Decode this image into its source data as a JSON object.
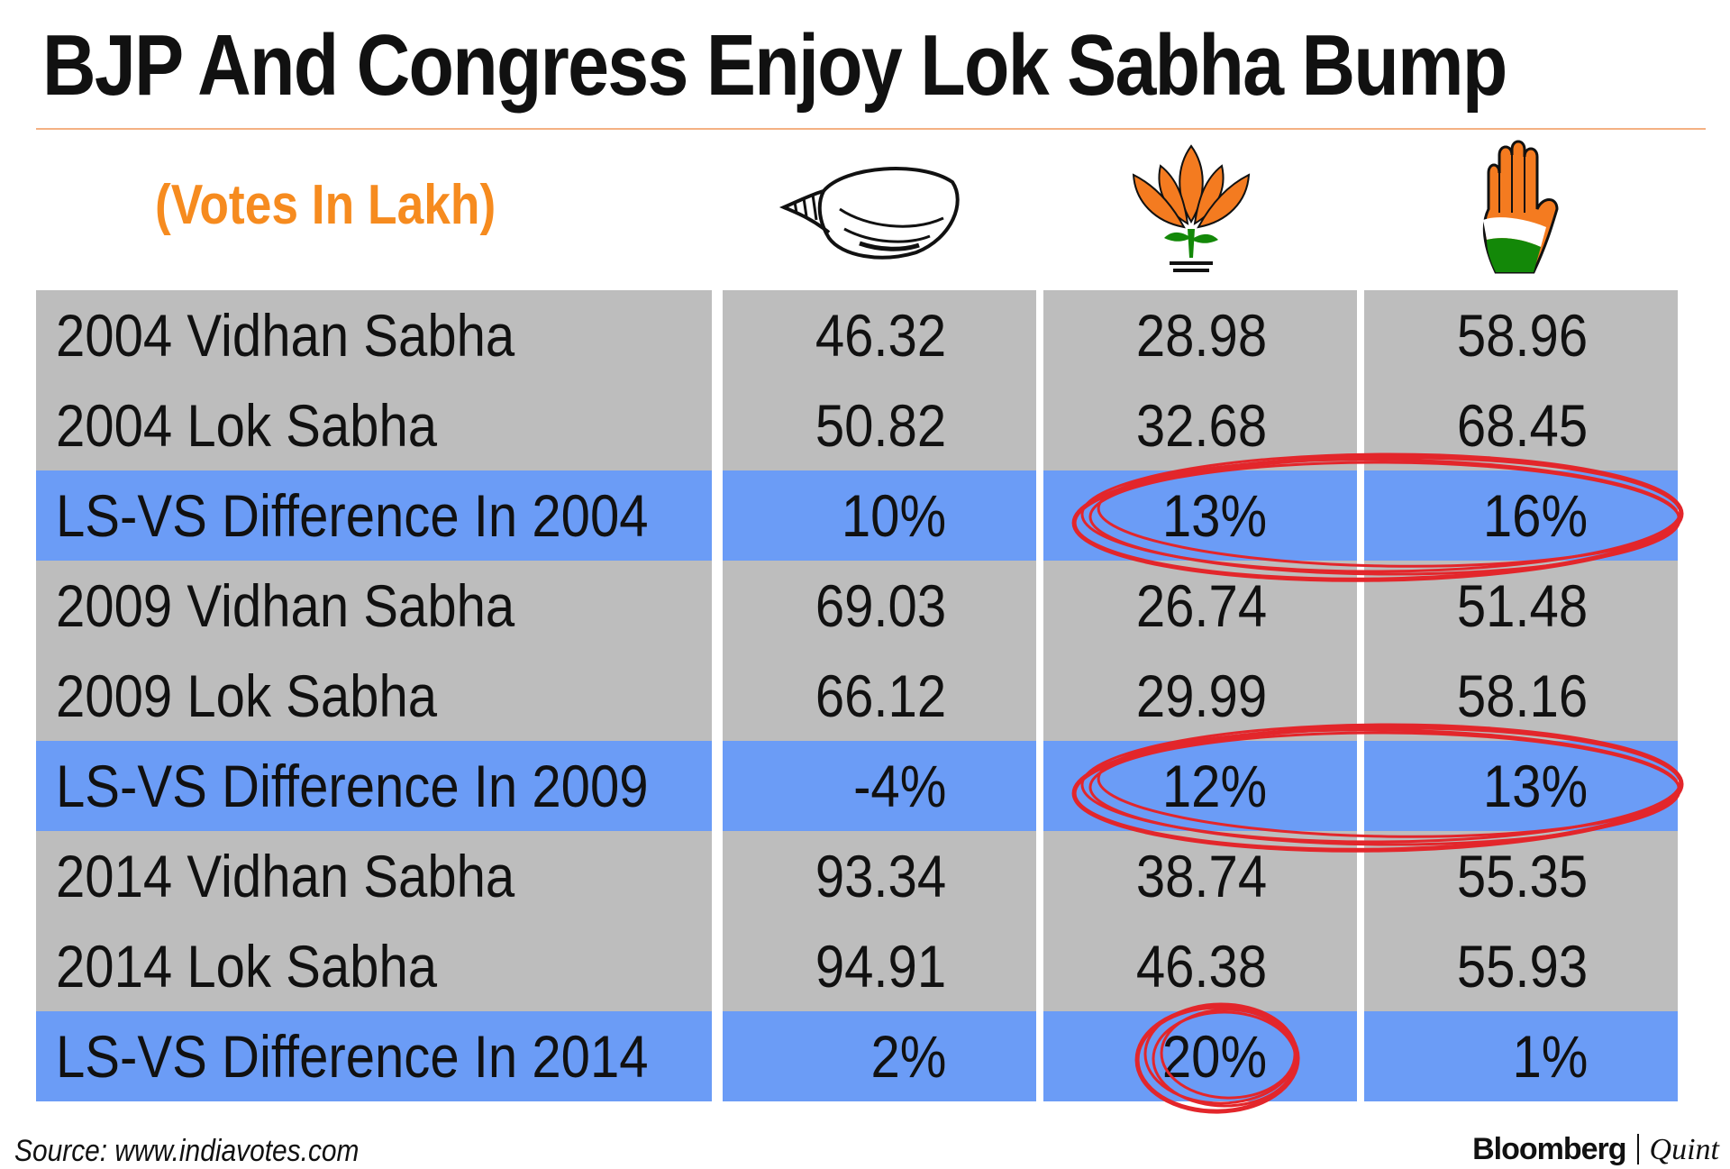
{
  "title": "BJP And Congress Enjoy Lok Sabha Bump",
  "subtitle": "(Votes In Lakh)",
  "parties": [
    {
      "icon": "conch-shell-icon",
      "color": "#000000"
    },
    {
      "icon": "lotus-icon",
      "color": "#f47b20"
    },
    {
      "icon": "hand-icon",
      "color": "#138808"
    }
  ],
  "colors": {
    "row_gray": "#bdbdbd",
    "row_blue": "#6b9cf6",
    "subtitle": "#f68b1f",
    "highlight": "#e3262b"
  },
  "chart_data": {
    "type": "table",
    "title": "BJP And Congress Enjoy Lok Sabha Bump",
    "unit": "(Votes In Lakh)",
    "columns": [
      "conch-shell",
      "lotus",
      "hand"
    ],
    "rows": [
      {
        "label": "2004 Vidhan Sabha",
        "values": [
          "46.32",
          "28.98",
          "58.96"
        ],
        "kind": "value"
      },
      {
        "label": "2004 Lok Sabha",
        "values": [
          "50.82",
          "32.68",
          "68.45"
        ],
        "kind": "value"
      },
      {
        "label": "LS-VS Difference In 2004",
        "values": [
          "10%",
          "13%",
          "16%"
        ],
        "kind": "difference"
      },
      {
        "label": "2009 Vidhan Sabha",
        "values": [
          "69.03",
          "26.74",
          "51.48"
        ],
        "kind": "value"
      },
      {
        "label": "2009 Lok Sabha",
        "values": [
          "66.12",
          "29.99",
          "58.16"
        ],
        "kind": "value"
      },
      {
        "label": "LS-VS Difference In 2009",
        "values": [
          "-4%",
          "12%",
          "13%"
        ],
        "kind": "difference"
      },
      {
        "label": "2014 Vidhan Sabha",
        "values": [
          "93.34",
          "38.74",
          "55.35"
        ],
        "kind": "value"
      },
      {
        "label": "2014 Lok Sabha",
        "values": [
          "94.91",
          "46.38",
          "55.93"
        ],
        "kind": "value"
      },
      {
        "label": "LS-VS Difference In 2014",
        "values": [
          "2%",
          "20%",
          "1%"
        ],
        "kind": "difference"
      }
    ],
    "highlighted": [
      {
        "row": 2,
        "columns": [
          1,
          2
        ]
      },
      {
        "row": 5,
        "columns": [
          1,
          2
        ]
      },
      {
        "row": 8,
        "columns": [
          1
        ]
      }
    ]
  },
  "footer": {
    "source": "Source: www.indiavotes.com",
    "brand_primary": "Bloomberg",
    "brand_secondary": "Quint"
  }
}
